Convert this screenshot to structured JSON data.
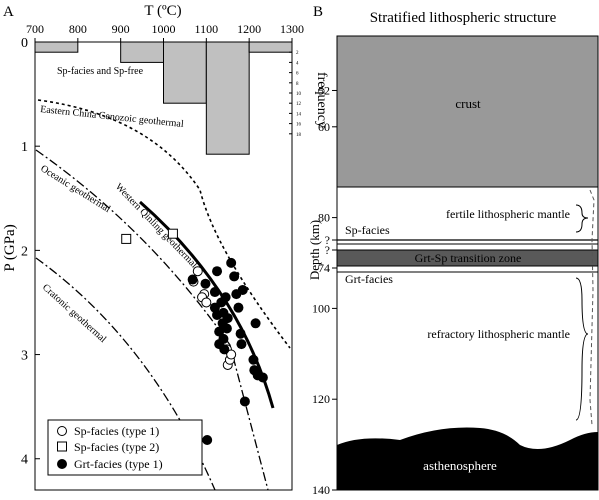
{
  "panel_a": {
    "label": "A",
    "x_title": "T (ºC)",
    "y_title": "P (GPa)",
    "hist_title": "frequency",
    "x_ticks": [
      "700",
      "800",
      "900",
      "1000",
      "1100",
      "1200",
      "1300"
    ],
    "y_ticks": [
      "0",
      "1",
      "2",
      "3",
      "4"
    ],
    "hist_ticks": [
      "2",
      "4",
      "6",
      "8",
      "10",
      "12",
      "14",
      "16",
      "18"
    ],
    "annotations": {
      "sp_free": "Sp-facies and Sp-free",
      "eastern": "Eastern China Cenozoic geothermal",
      "oceanic": "Oceanic geothermal",
      "western": "Western Qinling geothermal",
      "cratonic": "Cratonic geothermal"
    },
    "legend": [
      {
        "label": "Sp-facies (type 1)",
        "marker": "open-circle"
      },
      {
        "label": "Sp-facies (type 2)",
        "marker": "open-square"
      },
      {
        "label": "Grt-facies (type 1)",
        "marker": "filled-circle"
      }
    ]
  },
  "panel_b": {
    "label": "B",
    "title": "Stratified lithospheric structure",
    "y_title": "Depth (km)",
    "depth_ticks": [
      "52",
      "60",
      "?",
      "?",
      "74",
      "80",
      "100",
      "120",
      "140"
    ],
    "layers": {
      "crust": "crust",
      "fertile": "fertile lithospheric mantle",
      "sp_facies": "Sp-facies",
      "transition": "Grt-Sp transition zone",
      "grt_facies": "Grt-facies",
      "refractory": "refractory lithospheric mantle",
      "asthenosphere": "asthenosphere"
    },
    "colors": {
      "crust": "#999999",
      "transition": "#595959",
      "asthenosphere": "#000000"
    }
  },
  "chart_data": [
    {
      "type": "scatter",
      "xlabel": "T (ºC)",
      "ylabel": "P (GPa)",
      "xlim": [
        700,
        1300
      ],
      "ylim": [
        4.3,
        0
      ],
      "series": [
        {
          "name": "Sp-facies (type 1)",
          "x": [
            1080,
            1070,
            1095,
            1090,
            1100,
            1148,
            1150,
            1155,
            1158
          ],
          "y": [
            2.2,
            2.3,
            2.42,
            2.45,
            2.5,
            2.95,
            3.1,
            3.05,
            3.0
          ]
        },
        {
          "name": "Sp-facies (type 2)",
          "x": [
            913,
            1022
          ],
          "y": [
            1.89,
            1.84
          ]
        },
        {
          "name": "Grt-facies (type 1)",
          "x": [
            1068,
            1098,
            1120,
            1125,
            1130,
            1130,
            1135,
            1138,
            1140,
            1140,
            1142,
            1145,
            1148,
            1150,
            1158,
            1165,
            1170,
            1175,
            1180,
            1182,
            1185,
            1190,
            1210,
            1212,
            1215,
            1220,
            1232,
            1120,
            1125,
            1102
          ],
          "y": [
            2.28,
            2.32,
            2.55,
            2.62,
            2.78,
            2.9,
            2.5,
            2.7,
            2.6,
            2.85,
            2.95,
            2.45,
            2.75,
            2.65,
            2.12,
            2.25,
            2.42,
            2.55,
            2.8,
            2.9,
            2.38,
            3.45,
            3.05,
            3.15,
            2.7,
            3.2,
            3.22,
            2.4,
            2.2,
            3.82
          ]
        }
      ],
      "histogram": {
        "ylabel": "frequency",
        "bins": [
          {
            "from": 700,
            "to": 800,
            "count": 2
          },
          {
            "from": 800,
            "to": 900,
            "count": 0
          },
          {
            "from": 900,
            "to": 1000,
            "count": 4
          },
          {
            "from": 1000,
            "to": 1100,
            "count": 12
          },
          {
            "from": 1100,
            "to": 1200,
            "count": 22
          },
          {
            "from": 1200,
            "to": 1300,
            "count": 2
          }
        ]
      }
    }
  ]
}
